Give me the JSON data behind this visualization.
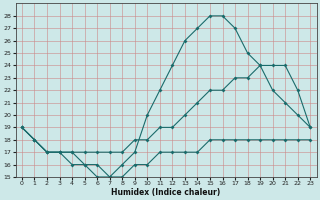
{
  "xlabel": "Humidex (Indice chaleur)",
  "ylabel": "",
  "background_color": "#cde8e8",
  "grid_color": "#b0cccc",
  "line_color": "#1a6b6b",
  "hours": [
    0,
    1,
    2,
    3,
    4,
    5,
    6,
    7,
    8,
    9,
    10,
    11,
    12,
    13,
    14,
    15,
    16,
    17,
    18,
    19,
    20,
    21,
    22,
    23
  ],
  "line_max": [
    19,
    18,
    17,
    17,
    17,
    16,
    16,
    15,
    16,
    17,
    20,
    22,
    24,
    26,
    27,
    28,
    28,
    27,
    25,
    24,
    22,
    21,
    20,
    19
  ],
  "line_mean": [
    19,
    18,
    17,
    17,
    17,
    17,
    17,
    17,
    17,
    18,
    18,
    19,
    19,
    20,
    21,
    22,
    22,
    23,
    23,
    24,
    24,
    24,
    22,
    19
  ],
  "line_min": [
    19,
    18,
    17,
    17,
    16,
    16,
    15,
    15,
    15,
    16,
    16,
    17,
    17,
    17,
    17,
    18,
    18,
    18,
    18,
    18,
    18,
    18,
    18,
    18
  ],
  "ylim": [
    15,
    29
  ],
  "yticks": [
    15,
    16,
    17,
    18,
    19,
    20,
    21,
    22,
    23,
    24,
    25,
    26,
    27,
    28
  ],
  "xlim": [
    -0.5,
    23.5
  ],
  "xticks": [
    0,
    1,
    2,
    3,
    4,
    5,
    6,
    7,
    8,
    9,
    10,
    11,
    12,
    13,
    14,
    15,
    16,
    17,
    18,
    19,
    20,
    21,
    22,
    23
  ]
}
